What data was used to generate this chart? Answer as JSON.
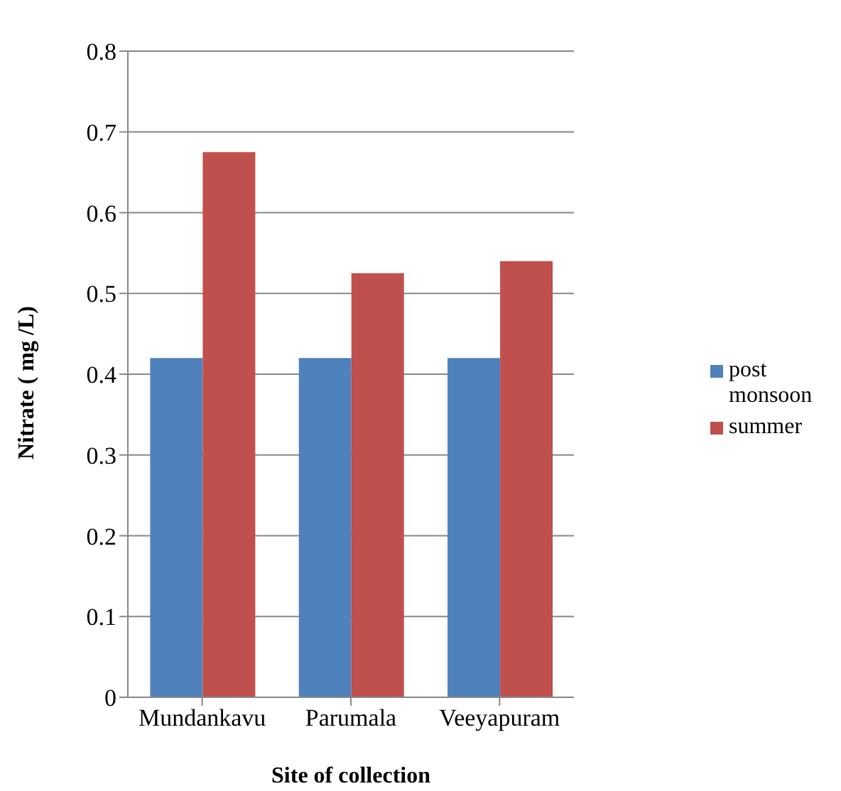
{
  "chart_data": {
    "type": "bar",
    "xlabel": "Site of collection",
    "ylabel": "Nitrate ( mg /L)",
    "categories": [
      "Mundankavu",
      "Parumala",
      "Veeyapuram"
    ],
    "series": [
      {
        "name": "post monsoon",
        "color": "#4f81bd",
        "values": [
          0.42,
          0.42,
          0.42
        ]
      },
      {
        "name": "summer",
        "color": "#c0504d",
        "values": [
          0.675,
          0.525,
          0.54
        ]
      }
    ],
    "ylim": [
      0,
      0.8
    ],
    "yticks": [
      0,
      0.1,
      0.2,
      0.3,
      0.4,
      0.5,
      0.6,
      0.7,
      0.8
    ],
    "grid": "y",
    "legend": "right"
  }
}
